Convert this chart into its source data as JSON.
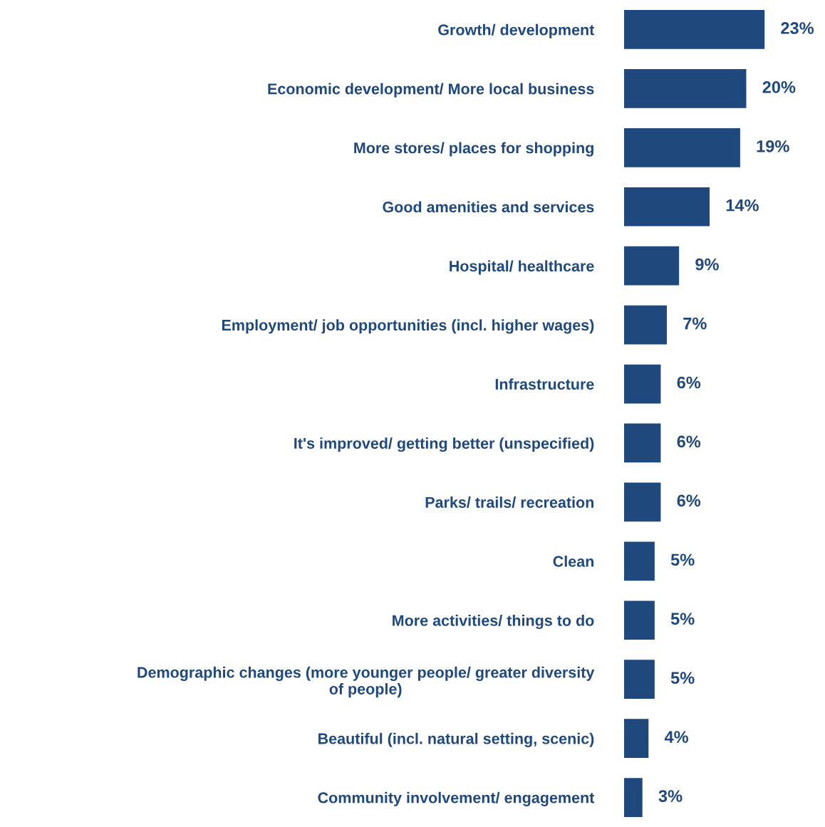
{
  "chart_data": {
    "type": "bar",
    "orientation": "horizontal",
    "color": "#1f497d",
    "value_labels": [
      "23%",
      "20%",
      "19%",
      "14%",
      "9%",
      "7%",
      "6%",
      "6%",
      "6%",
      "5%",
      "5%",
      "5%",
      "4%",
      "3%"
    ],
    "categories": [
      "Growth/ development",
      "Economic development/ More local business",
      "More stores/ places for shopping",
      "Good amenities and services",
      "Hospital/ healthcare",
      "Employment/ job opportunities (incl. higher wages)",
      "Infrastructure",
      "It's improved/ getting better (unspecified)",
      "Parks/ trails/ recreation",
      "Clean",
      "More activities/ things to do",
      "Demographic changes (more younger people/ greater diversity\nof people)",
      "Beautiful (incl. natural setting, scenic)",
      "Community involvement/ engagement"
    ],
    "values": [
      23,
      20,
      19,
      14,
      9,
      7,
      6,
      6,
      6,
      5,
      5,
      5,
      4,
      3
    ]
  }
}
